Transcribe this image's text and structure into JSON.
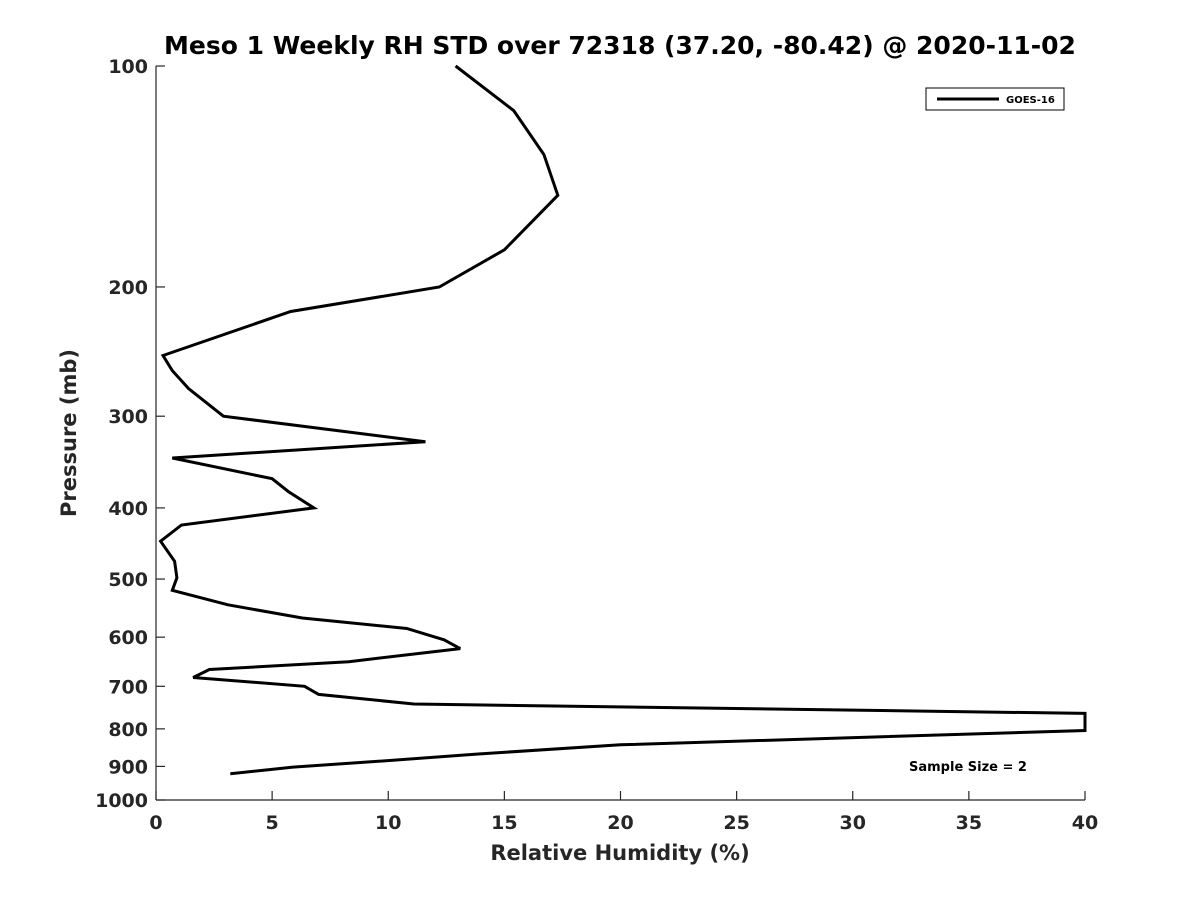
{
  "chart_data": {
    "type": "line",
    "title": "Meso 1 Weekly RH STD over 72318 (37.20, -80.42) @ 2020-11-02",
    "xlabel": "Relative Humidity (%)",
    "ylabel": "Pressure (mb)",
    "xlim": [
      0,
      40
    ],
    "ylim": [
      1000,
      100
    ],
    "yscale": "log",
    "y_reversed": true,
    "xticks": [
      0,
      5,
      10,
      15,
      20,
      25,
      30,
      35,
      40
    ],
    "yticks": [
      100,
      200,
      300,
      400,
      500,
      600,
      700,
      800,
      900,
      1000
    ],
    "grid": false,
    "legend": {
      "position": "top-right",
      "entries": [
        "GOES-16"
      ]
    },
    "annotation": "Sample Size = 2",
    "series": [
      {
        "name": "GOES-16",
        "color": "#000000",
        "points": [
          [
            12.9,
            100
          ],
          [
            15.4,
            115
          ],
          [
            16.7,
            132
          ],
          [
            17.3,
            150
          ],
          [
            15.0,
            178
          ],
          [
            12.2,
            200
          ],
          [
            5.8,
            216
          ],
          [
            0.3,
            248
          ],
          [
            0.7,
            260
          ],
          [
            1.4,
            275
          ],
          [
            2.9,
            300
          ],
          [
            11.6,
            325
          ],
          [
            0.7,
            342
          ],
          [
            5.0,
            365
          ],
          [
            5.7,
            380
          ],
          [
            6.8,
            400
          ],
          [
            1.1,
            422
          ],
          [
            0.2,
            444
          ],
          [
            0.8,
            473
          ],
          [
            0.9,
            498
          ],
          [
            0.7,
            518
          ],
          [
            3.1,
            542
          ],
          [
            6.3,
            565
          ],
          [
            10.8,
            584
          ],
          [
            12.4,
            605
          ],
          [
            13.1,
            622
          ],
          [
            8.3,
            648
          ],
          [
            2.3,
            664
          ],
          [
            1.6,
            681
          ],
          [
            6.4,
            700
          ],
          [
            7.0,
            718
          ],
          [
            11.1,
            740
          ],
          [
            40.0,
            762
          ],
          [
            40.0,
            804
          ],
          [
            20.0,
            841
          ],
          [
            13.8,
            866
          ],
          [
            9.5,
            886
          ],
          [
            5.9,
            902
          ],
          [
            3.2,
            921
          ]
        ]
      }
    ]
  }
}
